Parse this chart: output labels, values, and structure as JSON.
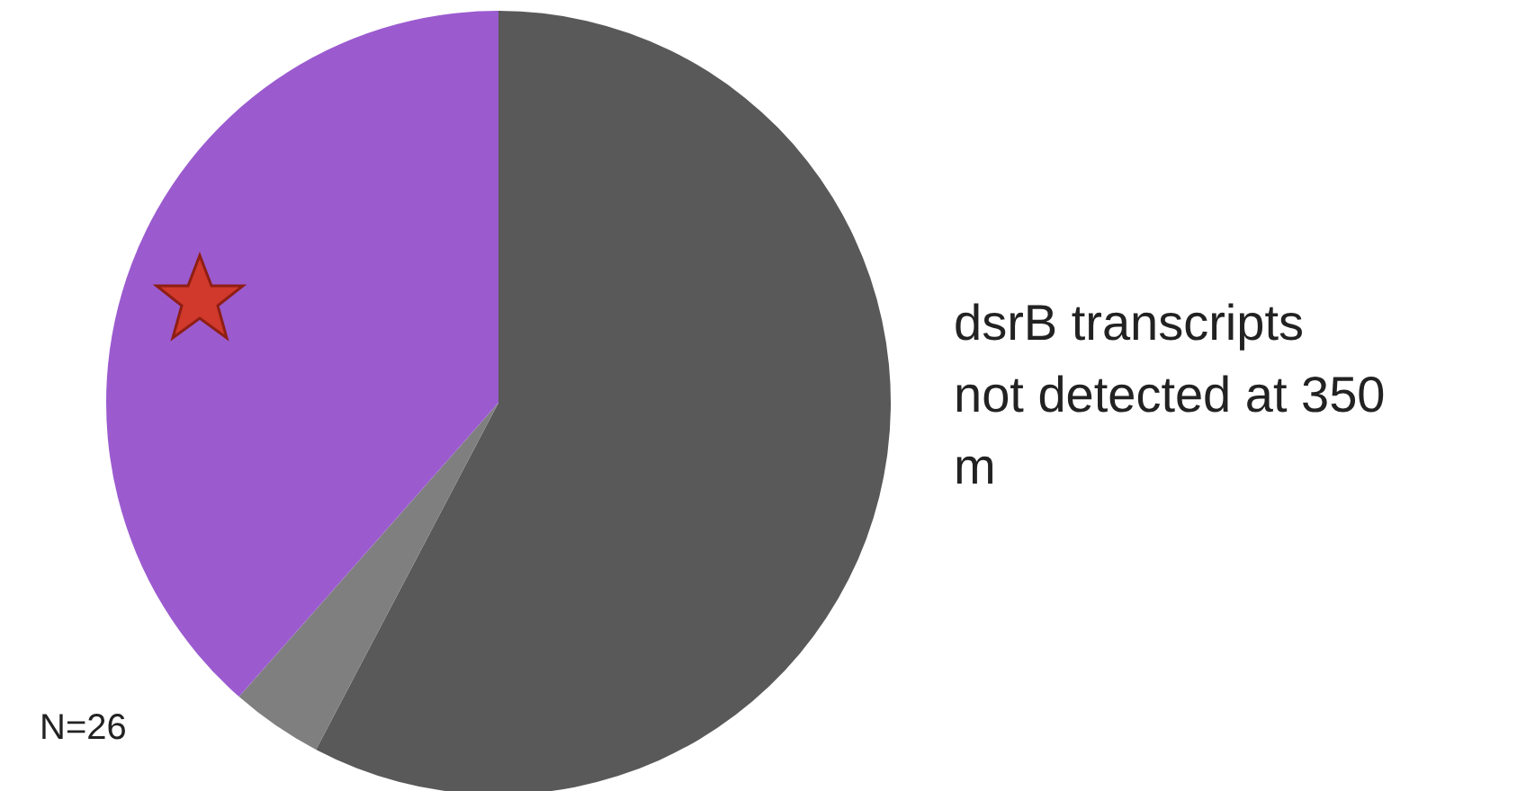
{
  "chart_data": {
    "type": "pie",
    "categories": [
      null,
      null,
      null
    ],
    "values": [
      57.7,
      3.8,
      38.5
    ],
    "colors": [
      "#595959",
      "#7f7f7f",
      "#9b5bcf"
    ],
    "annotations": [
      "dsrB transcripts not detected at 350 m",
      "N=26"
    ]
  }
}
